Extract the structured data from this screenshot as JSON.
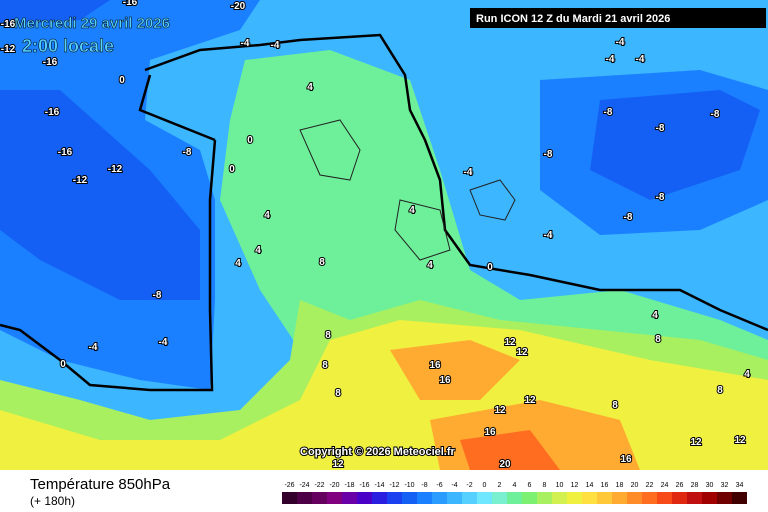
{
  "header": {
    "date": "Mercredi 29 avril 2026",
    "time": "2:00 locale",
    "run": "Run ICON 12 Z du Mardi 21 avril 2026"
  },
  "copyright": "Copyright © 2026 Meteociel.fr",
  "footer": {
    "title": "Température 850hPa",
    "lead": "(+ 180h)"
  },
  "scale": {
    "values": [
      -26,
      -24,
      -22,
      -20,
      -18,
      -16,
      -14,
      -12,
      -10,
      -8,
      -6,
      -4,
      -2,
      0,
      2,
      4,
      6,
      8,
      10,
      12,
      14,
      16,
      18,
      20,
      22,
      24,
      26,
      28,
      30,
      32,
      34
    ],
    "colors": [
      "#33002b",
      "#4d0045",
      "#66005e",
      "#800080",
      "#6a00a8",
      "#4b00c8",
      "#2a1ee0",
      "#1a40f0",
      "#1460f5",
      "#1a80ff",
      "#2a9cff",
      "#3cb6ff",
      "#55d0ff",
      "#6fe8ff",
      "#7af0d0",
      "#6ef09a",
      "#7cf070",
      "#a8f060",
      "#d2f050",
      "#f0f040",
      "#ffe040",
      "#ffc838",
      "#ffaa30",
      "#ff8c28",
      "#ff6e20",
      "#f84a18",
      "#e02810",
      "#c01010",
      "#a00000",
      "#700000",
      "#400000"
    ]
  },
  "map_labels": [
    -16,
    -20,
    -16,
    -12,
    -16,
    -4,
    -4,
    -4,
    -4,
    -4,
    0,
    -16,
    -16,
    -8,
    -12,
    -12,
    -8,
    -8,
    -8,
    -8,
    -4,
    -8,
    -8,
    0,
    0,
    4,
    4,
    4,
    4,
    8,
    4,
    4,
    0,
    -4,
    -8,
    -4,
    -4,
    0,
    4,
    8,
    8,
    8,
    8,
    12,
    12,
    16,
    16,
    12,
    12,
    16,
    20,
    16,
    12,
    12,
    12,
    8,
    4,
    8
  ]
}
